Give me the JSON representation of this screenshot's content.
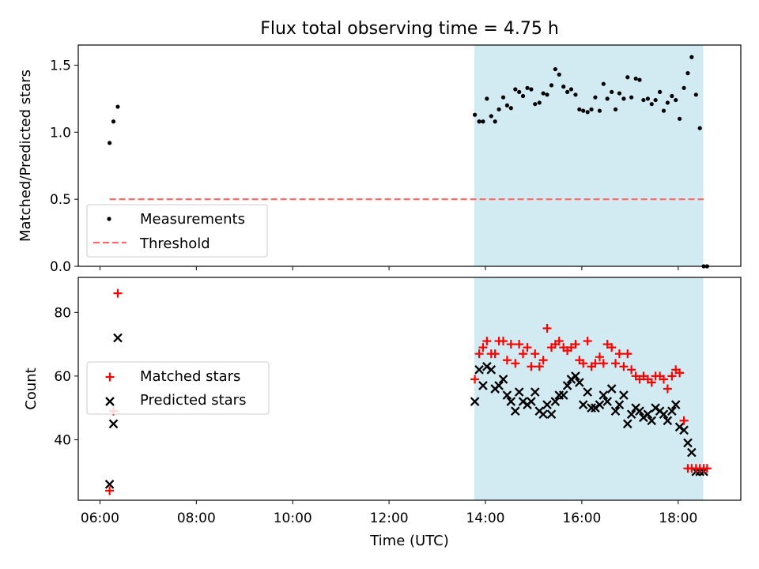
{
  "chart_data": [
    {
      "type": "scatter",
      "title": "Flux total observing time = 4.75 h",
      "ylabel": "Matched/Predicted stars",
      "xlabel": "",
      "xlim": [
        5.55,
        19.3
      ],
      "ylim": [
        0,
        1.65
      ],
      "yticks": [
        0.0,
        0.5,
        1.0,
        1.5
      ],
      "ytick_labels": [
        "0.0",
        "0.5",
        "1.0",
        "1.5"
      ],
      "shaded_span": {
        "x0": 13.77,
        "x1": 18.52,
        "color": "#add8e6"
      },
      "legend_position": "lower-left",
      "series": [
        {
          "name": "Measurements",
          "marker": "dot",
          "color": "#000000",
          "x": [
            6.2,
            6.28,
            6.37,
            13.78,
            13.87,
            13.95,
            14.03,
            14.12,
            14.2,
            14.28,
            14.37,
            14.45,
            14.53,
            14.62,
            14.7,
            14.78,
            14.87,
            14.95,
            15.03,
            15.12,
            15.2,
            15.28,
            15.37,
            15.45,
            15.53,
            15.62,
            15.7,
            15.78,
            15.87,
            15.95,
            16.03,
            16.12,
            16.2,
            16.28,
            16.37,
            16.45,
            16.53,
            16.62,
            16.7,
            16.78,
            16.87,
            16.95,
            17.03,
            17.12,
            17.2,
            17.28,
            17.37,
            17.45,
            17.53,
            17.62,
            17.7,
            17.78,
            17.87,
            17.95,
            18.03,
            18.12,
            18.2,
            18.28,
            18.37,
            18.45,
            18.53,
            18.6
          ],
          "y": [
            0.92,
            1.08,
            1.19,
            1.13,
            1.08,
            1.08,
            1.25,
            1.12,
            1.08,
            1.17,
            1.26,
            1.2,
            1.18,
            1.32,
            1.3,
            1.27,
            1.33,
            1.32,
            1.21,
            1.22,
            1.29,
            1.28,
            1.35,
            1.47,
            1.43,
            1.34,
            1.3,
            1.32,
            1.28,
            1.17,
            1.16,
            1.15,
            1.17,
            1.26,
            1.16,
            1.36,
            1.25,
            1.3,
            1.17,
            1.29,
            1.25,
            1.41,
            1.26,
            1.4,
            1.39,
            1.24,
            1.25,
            1.21,
            1.24,
            1.3,
            1.16,
            1.22,
            1.27,
            1.24,
            1.1,
            1.33,
            1.44,
            1.56,
            1.28,
            1.03,
            0.0,
            0.0
          ]
        },
        {
          "name": "Threshold",
          "type": "line",
          "style": "dashed",
          "color": "#ff6b6b",
          "x": [
            6.2,
            18.53
          ],
          "y": [
            0.5,
            0.5
          ]
        }
      ]
    },
    {
      "type": "scatter",
      "title": "",
      "xlabel": "Time (UTC)",
      "ylabel": "Count",
      "xlim": [
        5.55,
        19.3
      ],
      "ylim": [
        21,
        91
      ],
      "yticks": [
        40,
        60,
        80
      ],
      "ytick_labels": [
        "40",
        "60",
        "80"
      ],
      "xticks": [
        6,
        8,
        10,
        12,
        14,
        16,
        18
      ],
      "xtick_labels": [
        "06:00",
        "08:00",
        "10:00",
        "12:00",
        "14:00",
        "16:00",
        "18:00"
      ],
      "shaded_span": {
        "x0": 13.77,
        "x1": 18.52,
        "color": "#add8e6"
      },
      "legend_position": "center-left",
      "series": [
        {
          "name": "Matched stars",
          "marker": "plus",
          "color": "#ff0000",
          "x": [
            6.2,
            6.28,
            6.37,
            13.78,
            13.87,
            13.95,
            14.03,
            14.12,
            14.2,
            14.28,
            14.37,
            14.45,
            14.53,
            14.62,
            14.7,
            14.78,
            14.87,
            14.95,
            15.03,
            15.12,
            15.2,
            15.28,
            15.37,
            15.45,
            15.53,
            15.62,
            15.7,
            15.78,
            15.87,
            15.95,
            16.03,
            16.12,
            16.2,
            16.28,
            16.37,
            16.45,
            16.53,
            16.62,
            16.7,
            16.78,
            16.87,
            16.95,
            17.03,
            17.12,
            17.2,
            17.28,
            17.37,
            17.45,
            17.53,
            17.62,
            17.7,
            17.78,
            17.87,
            17.95,
            18.03,
            18.12,
            18.2,
            18.28,
            18.37,
            18.45,
            18.53,
            18.6
          ],
          "y": [
            24,
            49,
            86,
            59,
            67,
            69,
            71,
            67,
            67,
            71,
            71,
            65,
            70,
            64,
            70,
            67,
            69,
            63,
            67,
            63,
            65,
            75,
            69,
            70,
            71,
            69,
            68,
            69,
            70,
            65,
            64,
            71,
            63,
            64,
            66,
            64,
            70,
            69,
            64,
            67,
            63,
            67,
            62,
            60,
            59,
            60,
            59,
            58,
            60,
            60,
            59,
            56,
            60,
            62,
            61,
            46,
            31,
            31,
            31,
            31,
            31,
            31
          ]
        },
        {
          "name": "Predicted stars",
          "marker": "x",
          "color": "#000000",
          "x": [
            6.2,
            6.28,
            6.37,
            13.78,
            13.87,
            13.95,
            14.03,
            14.12,
            14.2,
            14.28,
            14.37,
            14.45,
            14.53,
            14.62,
            14.7,
            14.78,
            14.87,
            14.95,
            15.03,
            15.12,
            15.2,
            15.28,
            15.37,
            15.45,
            15.53,
            15.62,
            15.7,
            15.78,
            15.87,
            15.95,
            16.03,
            16.12,
            16.2,
            16.28,
            16.37,
            16.45,
            16.53,
            16.62,
            16.7,
            16.78,
            16.87,
            16.95,
            17.03,
            17.12,
            17.2,
            17.28,
            17.37,
            17.45,
            17.53,
            17.62,
            17.7,
            17.78,
            17.87,
            17.95,
            18.03,
            18.12,
            18.2,
            18.28,
            18.37,
            18.45,
            18.53
          ],
          "y": [
            26,
            45,
            72,
            52,
            62,
            57,
            63,
            62,
            56,
            57,
            59,
            54,
            52,
            49,
            55,
            52,
            51,
            52,
            55,
            49,
            48,
            51,
            48,
            52,
            54,
            54,
            57,
            59,
            60,
            58,
            51,
            55,
            50,
            50,
            51,
            54,
            52,
            56,
            49,
            51,
            54,
            45,
            48,
            50,
            49,
            47,
            48,
            46,
            50,
            49,
            48,
            46,
            49,
            51,
            44,
            43,
            39,
            36,
            30,
            30,
            30
          ]
        }
      ]
    }
  ]
}
